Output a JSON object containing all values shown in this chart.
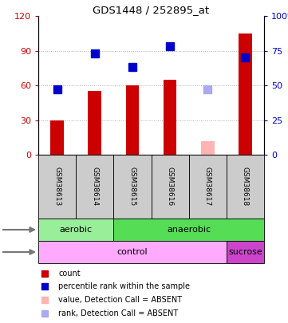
{
  "title": "GDS1448 / 252895_at",
  "samples": [
    "GSM38613",
    "GSM38614",
    "GSM38615",
    "GSM38616",
    "GSM38617",
    "GSM38618"
  ],
  "bar_values": [
    30,
    55,
    60,
    65,
    null,
    105
  ],
  "bar_absent_values": [
    null,
    null,
    null,
    null,
    12,
    null
  ],
  "bar_color": "#cc0000",
  "bar_absent_color": "#ffb3b3",
  "rank_values": [
    47,
    73,
    63,
    78,
    null,
    70
  ],
  "rank_absent_values": [
    null,
    null,
    null,
    null,
    47,
    null
  ],
  "rank_color": "#0000cc",
  "rank_absent_color": "#aaaaee",
  "ylim_left": [
    0,
    120
  ],
  "ylim_right": [
    0,
    100
  ],
  "yticks_left": [
    0,
    30,
    60,
    90,
    120
  ],
  "ytick_labels_left": [
    "0",
    "30",
    "60",
    "90",
    "120"
  ],
  "yticks_right": [
    0,
    25,
    50,
    75,
    100
  ],
  "ytick_labels_right": [
    "0",
    "25",
    "50",
    "75",
    "100%"
  ],
  "protocol_groups": [
    [
      "aerobic",
      0,
      1
    ],
    [
      "anaerobic",
      2,
      5
    ]
  ],
  "protocol_colors": [
    "#99ee99",
    "#55dd55"
  ],
  "agent_groups": [
    [
      "control",
      0,
      4
    ],
    [
      "sucrose",
      5,
      5
    ]
  ],
  "agent_colors": [
    "#ffaaff",
    "#cc44cc"
  ],
  "legend_items": [
    {
      "label": "count",
      "color": "#cc0000"
    },
    {
      "label": "percentile rank within the sample",
      "color": "#0000cc"
    },
    {
      "label": "value, Detection Call = ABSENT",
      "color": "#ffb3b3"
    },
    {
      "label": "rank, Detection Call = ABSENT",
      "color": "#aaaaee"
    }
  ],
  "bar_width": 0.35,
  "rank_marker_size": 7,
  "grid_ticks": [
    30,
    60,
    90
  ]
}
